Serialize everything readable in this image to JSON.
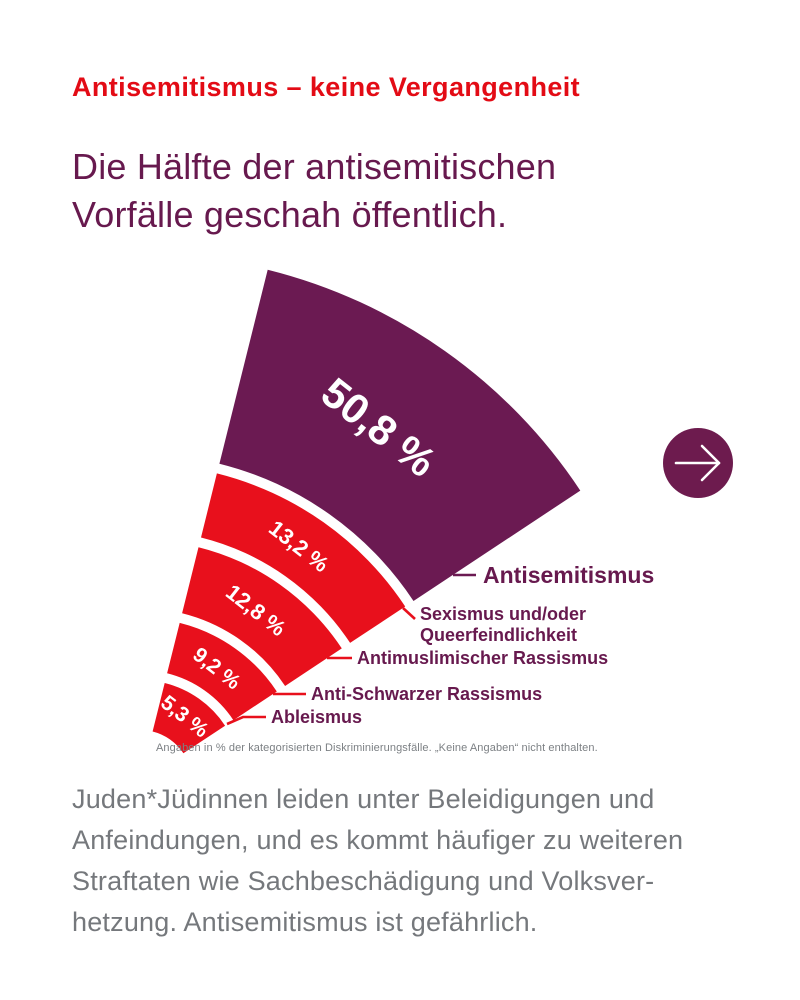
{
  "page": {
    "kicker": "Antisemitismus – keine Vergangenheit",
    "title_line1": "Die Hälfte der antisemitischen",
    "title_line2": "Vorfälle geschah öffentlich.",
    "footnote": "Angaben in % der kategorisierten Diskriminierungsfälle. „Keine Angaben“ nicht enthalten.",
    "body_lines": {
      "line1": "Juden*Jüdinnen leiden unter Beleidigungen und",
      "line2": "Anfeindungen, und es kommt häufiger zu weiteren",
      "line3": "Straftaten wie Sachbeschädigung und Volksver-",
      "line4": "hetzung. Antisemitismus ist gefährlich."
    },
    "colors": {
      "accent_red": "#e8101c",
      "brand_purple": "#6b1a52",
      "label_purple": "#67194e",
      "body_gray": "#75787c",
      "footnote_gray": "#7c8084"
    },
    "arrow_button": {
      "icon": "arrow-right-icon"
    }
  },
  "chart_data": {
    "type": "fan",
    "description": "Stacked radial fan chart opening to the upper right; band thickness represents share of categorized discrimination cases",
    "unit": "%",
    "legend_position": "right, via leader lines",
    "segments": [
      {
        "label": "Antisemitismus",
        "label_lines": [
          "Antisemitismus"
        ],
        "value": 50.8,
        "value_label": "50,8 %",
        "color": "#6b1a52"
      },
      {
        "label": "Sexismus und/oder Queerfeindlichkeit",
        "label_lines": [
          "Sexismus und/oder",
          "Queerfeindlichkeit"
        ],
        "value": 13.2,
        "value_label": "13,2 %",
        "color": "#e8101c"
      },
      {
        "label": "Antimuslimischer Rassismus",
        "label_lines": [
          "Antimuslimischer Rassismus"
        ],
        "value": 12.8,
        "value_label": "12,8 %",
        "color": "#e8101c"
      },
      {
        "label": "Anti-Schwarzer Rassismus",
        "label_lines": [
          "Anti-Schwarzer Rassismus"
        ],
        "value": 9.2,
        "value_label": "9,2 %",
        "color": "#e8101c"
      },
      {
        "label": "Ableismus",
        "label_lines": [
          "Ableismus"
        ],
        "value": 5.3,
        "value_label": "5,3 %",
        "color": "#e8101c"
      }
    ],
    "note": "Angaben in % der kategorisierten Diskriminierungsfälle. „Keine Angaben“ nicht enthalten."
  }
}
